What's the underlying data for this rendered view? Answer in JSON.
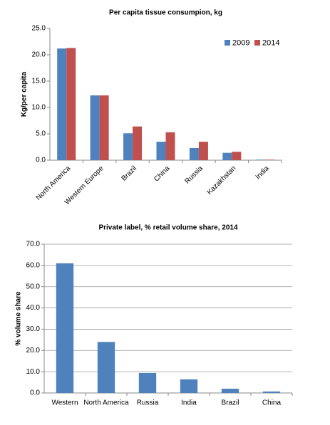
{
  "chart_data": [
    {
      "type": "bar",
      "title": "Per capita tissue consumpion, kg",
      "y_label": "Kg/per capita",
      "categories": [
        "North America",
        "Western Europe",
        "Brazil",
        "China",
        "Russia",
        "Kazakhstan",
        "India"
      ],
      "series": [
        {
          "name": "2009",
          "color": "#4f81bd",
          "values": [
            21.2,
            12.3,
            5.1,
            3.5,
            2.3,
            1.4,
            0.1
          ]
        },
        {
          "name": "2014",
          "color": "#c0504d",
          "values": [
            21.3,
            12.3,
            6.4,
            5.3,
            3.5,
            1.6,
            0.1
          ]
        }
      ],
      "ylim": [
        0,
        25
      ],
      "yticks": [
        {
          "value": 0,
          "label": "0.0"
        },
        {
          "value": 5,
          "label": "5.0"
        },
        {
          "value": 10,
          "label": "10.0"
        },
        {
          "value": 15,
          "label": "15.0"
        },
        {
          "value": 20,
          "label": "20.0"
        },
        {
          "value": 25,
          "label": "25.0"
        }
      ],
      "grid": false,
      "legend": "top-right",
      "rotate_labels": true
    },
    {
      "type": "bar",
      "title": "Private label, % retail volume share, 2014",
      "y_label": "% volume share",
      "categories": [
        "Western",
        "North America",
        "Russia",
        "India",
        "Brazil",
        "China"
      ],
      "values": [
        61,
        24,
        9.4,
        6.4,
        2.0,
        0.7
      ],
      "color": "#4f81bd",
      "ylim": [
        0,
        70
      ],
      "yticks": [
        {
          "value": 0,
          "label": "0.0"
        },
        {
          "value": 10,
          "label": "10.0"
        },
        {
          "value": 20,
          "label": "20.0"
        },
        {
          "value": 30,
          "label": "30.0"
        },
        {
          "value": 40,
          "label": "40.0"
        },
        {
          "value": 50,
          "label": "50.0"
        },
        {
          "value": 60,
          "label": "60.0"
        },
        {
          "value": 70,
          "label": "70.0"
        }
      ],
      "grid": true,
      "rotate_labels": false
    }
  ]
}
